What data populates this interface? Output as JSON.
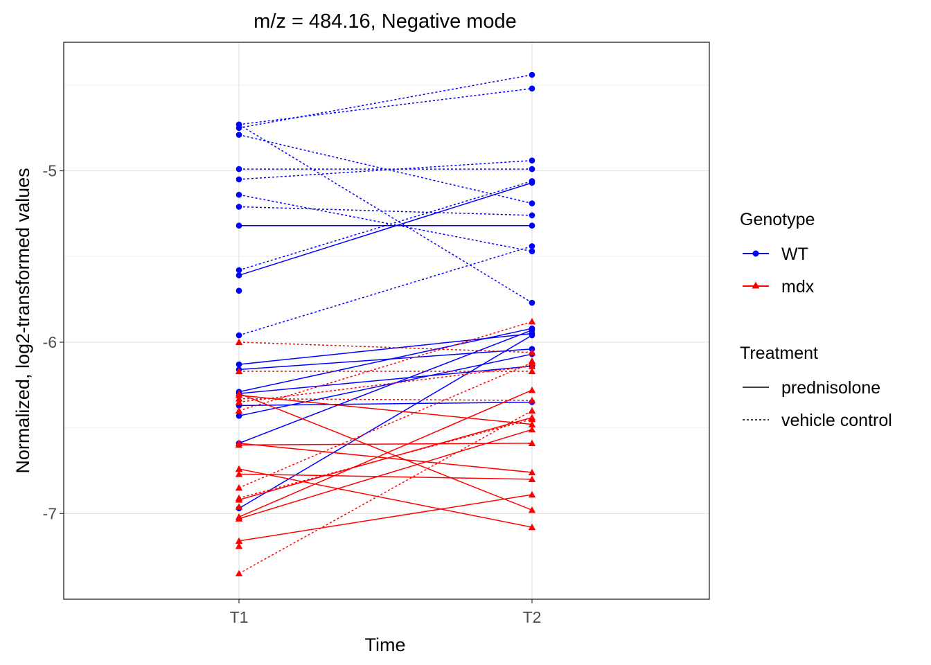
{
  "chart_data": {
    "type": "line",
    "title": "m/z = 484.16, Negative mode",
    "xlabel": "Time",
    "ylabel": "Normalized, log2-transformed values",
    "categories": [
      "T1",
      "T2"
    ],
    "ylim": [
      -7.5,
      -4.25
    ],
    "yticks": [
      -7,
      -6,
      -5
    ],
    "ytick_labels": [
      "-7",
      "-6",
      "-5"
    ],
    "grid": true,
    "legend_position": "right",
    "legend": {
      "genotype_title": "Genotype",
      "genotype_items": [
        {
          "label": "WT",
          "color": "#0000ff",
          "shape": "circle"
        },
        {
          "label": "mdx",
          "color": "#ff0000",
          "shape": "triangle"
        }
      ],
      "treatment_title": "Treatment",
      "treatment_items": [
        {
          "label": "prednisolone",
          "linetype": "solid"
        },
        {
          "label": "vehicle control",
          "linetype": "dotted"
        }
      ]
    },
    "colors": {
      "WT": "#0000ff",
      "mdx": "#ff0000"
    },
    "series": [
      {
        "genotype": "WT",
        "treatment": "vehicle control",
        "values": [
          -4.75,
          -4.44
        ]
      },
      {
        "genotype": "WT",
        "treatment": "vehicle control",
        "values": [
          -4.73,
          -4.52
        ]
      },
      {
        "genotype": "WT",
        "treatment": "vehicle control",
        "values": [
          -4.73,
          -5.77
        ]
      },
      {
        "genotype": "WT",
        "treatment": "vehicle control",
        "values": [
          -4.79,
          -5.19
        ]
      },
      {
        "genotype": "WT",
        "treatment": "vehicle control",
        "values": [
          -4.99,
          -4.99
        ]
      },
      {
        "genotype": "WT",
        "treatment": "vehicle control",
        "values": [
          -5.05,
          -4.94
        ]
      },
      {
        "genotype": "WT",
        "treatment": "vehicle control",
        "values": [
          -5.14,
          -5.47
        ]
      },
      {
        "genotype": "WT",
        "treatment": "vehicle control",
        "values": [
          -5.21,
          -5.26
        ]
      },
      {
        "genotype": "WT",
        "treatment": "vehicle control",
        "values": [
          -5.58,
          -5.06
        ]
      },
      {
        "genotype": "WT",
        "treatment": "vehicle control",
        "values": [
          -5.96,
          -5.44
        ]
      },
      {
        "genotype": "WT",
        "treatment": "prednisolone",
        "values": [
          -5.32,
          -5.32
        ]
      },
      {
        "genotype": "WT",
        "treatment": "prednisolone",
        "values": [
          -5.61,
          -5.07
        ]
      },
      {
        "genotype": "WT",
        "treatment": "prednisolone",
        "values": [
          -6.13,
          -5.95
        ]
      },
      {
        "genotype": "WT",
        "treatment": "prednisolone",
        "values": [
          -6.16,
          -6.04
        ]
      },
      {
        "genotype": "WT",
        "treatment": "prednisolone",
        "values": [
          -6.29,
          -5.92
        ]
      },
      {
        "genotype": "WT",
        "treatment": "prednisolone",
        "values": [
          -6.3,
          -6.14
        ]
      },
      {
        "genotype": "WT",
        "treatment": "prednisolone",
        "values": [
          -6.37,
          -6.35
        ]
      },
      {
        "genotype": "WT",
        "treatment": "prednisolone",
        "values": [
          -6.43,
          -6.07
        ]
      },
      {
        "genotype": "WT",
        "treatment": "prednisolone",
        "values": [
          -6.59,
          -5.93
        ]
      },
      {
        "genotype": "WT",
        "treatment": "prednisolone",
        "values": [
          -6.97,
          -5.96
        ]
      },
      {
        "genotype": "WT",
        "treatment": "",
        "values": [
          -5.7,
          null
        ]
      },
      {
        "genotype": "mdx",
        "treatment": "vehicle control",
        "values": [
          -6.0,
          -6.06
        ]
      },
      {
        "genotype": "mdx",
        "treatment": "vehicle control",
        "values": [
          -6.17,
          -6.17
        ]
      },
      {
        "genotype": "mdx",
        "treatment": "vehicle control",
        "values": [
          -6.33,
          -6.34
        ]
      },
      {
        "genotype": "mdx",
        "treatment": "vehicle control",
        "values": [
          -6.35,
          -6.14
        ]
      },
      {
        "genotype": "mdx",
        "treatment": "vehicle control",
        "values": [
          -6.4,
          -5.88
        ]
      },
      {
        "genotype": "mdx",
        "treatment": "vehicle control",
        "values": [
          -6.85,
          -6.12
        ]
      },
      {
        "genotype": "mdx",
        "treatment": "vehicle control",
        "values": [
          -6.91,
          -6.45
        ]
      },
      {
        "genotype": "mdx",
        "treatment": "vehicle control",
        "values": [
          -7.35,
          -6.4
        ]
      },
      {
        "genotype": "mdx",
        "treatment": "prednisolone",
        "values": [
          -6.3,
          -6.98
        ]
      },
      {
        "genotype": "mdx",
        "treatment": "prednisolone",
        "values": [
          -6.31,
          -6.48
        ]
      },
      {
        "genotype": "mdx",
        "treatment": "prednisolone",
        "values": [
          -6.59,
          -6.76
        ]
      },
      {
        "genotype": "mdx",
        "treatment": "prednisolone",
        "values": [
          -6.6,
          -6.59
        ]
      },
      {
        "genotype": "mdx",
        "treatment": "prednisolone",
        "values": [
          -6.74,
          -7.08
        ]
      },
      {
        "genotype": "mdx",
        "treatment": "prednisolone",
        "values": [
          -6.77,
          -6.8
        ]
      },
      {
        "genotype": "mdx",
        "treatment": "prednisolone",
        "values": [
          -6.92,
          -6.44
        ]
      },
      {
        "genotype": "mdx",
        "treatment": "prednisolone",
        "values": [
          -7.02,
          -6.28
        ]
      },
      {
        "genotype": "mdx",
        "treatment": "prednisolone",
        "values": [
          -7.03,
          -6.51
        ]
      },
      {
        "genotype": "mdx",
        "treatment": "prednisolone",
        "values": [
          -7.16,
          -6.89
        ]
      },
      {
        "genotype": "mdx",
        "treatment": "",
        "values": [
          -7.19,
          null
        ]
      },
      {
        "genotype": "mdx",
        "treatment": "",
        "values": [
          -6.96,
          null
        ]
      },
      {
        "genotype": "mdx",
        "treatment": "",
        "values": [
          null,
          -6.11
        ]
      }
    ]
  }
}
